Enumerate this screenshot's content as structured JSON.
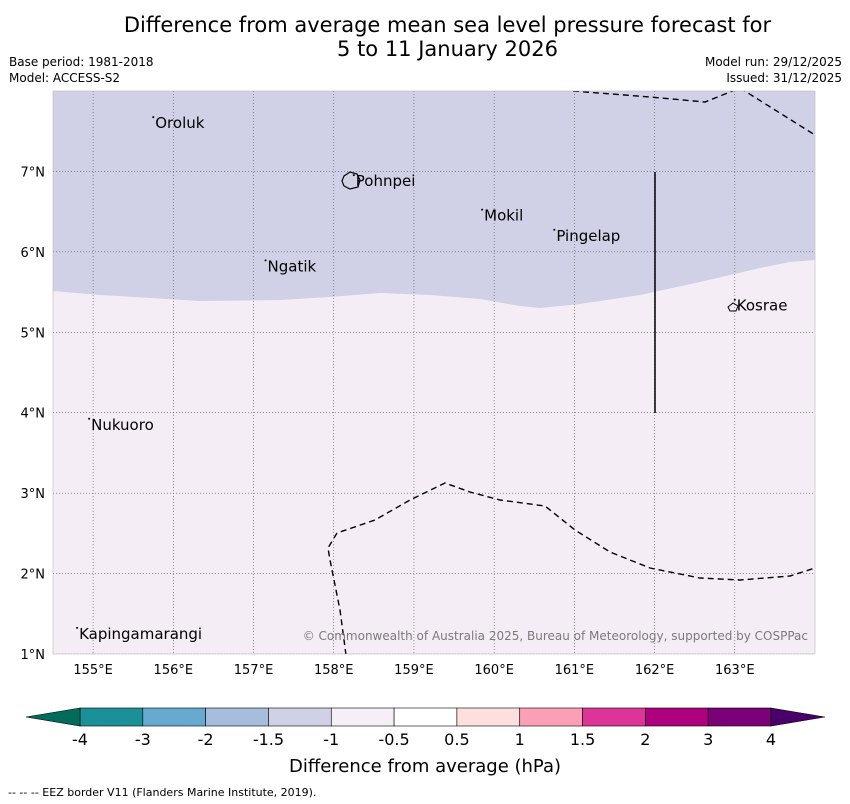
{
  "title": {
    "line1": "Difference from average mean sea level pressure forecast for",
    "line2": "5 to 11 January 2026"
  },
  "info": {
    "base_period": "Base period: 1981-2018",
    "model": "Model: ACCESS-S2",
    "model_run": "Model run: 29/12/2025",
    "issued": "Issued: 31/12/2025"
  },
  "map": {
    "lon_range": [
      154.5,
      164.0
    ],
    "lat_range": [
      1.0,
      8.0
    ],
    "lon_ticks": [
      "155°E",
      "156°E",
      "157°E",
      "158°E",
      "159°E",
      "160°E",
      "161°E",
      "162°E",
      "163°E"
    ],
    "lat_ticks": [
      "1°N",
      "2°N",
      "3°N",
      "4°N",
      "5°N",
      "6°N",
      "7°N"
    ],
    "places": [
      {
        "name": "Oroluk",
        "lon": 155.75,
        "lat": 7.6
      },
      {
        "name": "Pohnpei",
        "lon": 158.25,
        "lat": 6.88
      },
      {
        "name": "Mokil",
        "lon": 159.85,
        "lat": 6.45
      },
      {
        "name": "Pingelap",
        "lon": 160.75,
        "lat": 6.2
      },
      {
        "name": "Ngatik",
        "lon": 157.15,
        "lat": 5.82
      },
      {
        "name": "Kosrae",
        "lon": 163.0,
        "lat": 5.33
      },
      {
        "name": "Nukuoro",
        "lon": 154.95,
        "lat": 3.85
      },
      {
        "name": "Kapingamarangi",
        "lon": 154.8,
        "lat": 1.25
      }
    ],
    "upper_region_color": "#d0d1e6",
    "lower_region_color": "#f4edf6",
    "upper_region_category": "-1.5 to -1",
    "lower_region_category": "-1 to -0.5",
    "copyright": "© Commonwealth of Australia 2025, Bureau of Meteorology, supported by COSPPac"
  },
  "colorbar": {
    "labels": [
      "-4",
      "-3",
      "-2",
      "-1.5",
      "-1",
      "-0.5",
      "0.5",
      "1",
      "1.5",
      "2",
      "3",
      "4"
    ],
    "colors": [
      "#1c9099",
      "#67a9cf",
      "#a6bddb",
      "#d0d1e6",
      "#f6eff7",
      "#ffffff",
      "#fde0dd",
      "#fa9fb5",
      "#dd3497",
      "#ae017e",
      "#7a0177"
    ],
    "under_color": "#016c59",
    "over_color": "#49006a",
    "title": "Difference from average (hPa)"
  },
  "footnote": "--  --  -- EEZ border V11 (Flanders Marine Institute, 2019)."
}
